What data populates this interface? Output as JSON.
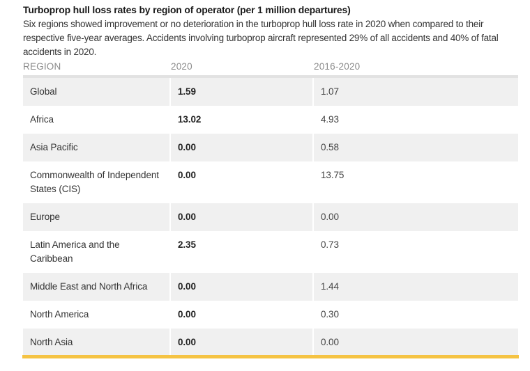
{
  "title": "Turboprop hull loss rates by region of operator (per 1 million departures)",
  "description": "Six regions showed improvement or no deterioration in the turboprop hull loss rate in 2020 when compared to their respective five-year averages. Accidents involving turboprop aircraft represented 29% of all accidents and 40% of fatal accidents in 2020.",
  "table": {
    "headers": [
      "REGION",
      "2020",
      "2016-2020"
    ],
    "rows": [
      {
        "region": "Global",
        "y2020": "1.59",
        "avg": "1.07"
      },
      {
        "region": "Africa",
        "y2020": "13.02",
        "avg": "4.93"
      },
      {
        "region": "Asia Pacific",
        "y2020": "0.00",
        "avg": "0.58"
      },
      {
        "region": "Commonwealth of Independent States (CIS)",
        "y2020": "0.00",
        "avg": "13.75"
      },
      {
        "region": "Europe",
        "y2020": "0.00",
        "avg": "0.00"
      },
      {
        "region": "Latin America and the Caribbean",
        "y2020": "2.35",
        "avg": "0.73"
      },
      {
        "region": "Middle East and North Africa",
        "y2020": "0.00",
        "avg": "1.44"
      },
      {
        "region": "North America",
        "y2020": "0.00",
        "avg": "0.30"
      },
      {
        "region": "North Asia",
        "y2020": "0.00",
        "avg": "0.00"
      }
    ]
  },
  "colors": {
    "accent_bar": "#f5c343",
    "row_shade": "#f0f0f0",
    "header_text": "#8a8a8a"
  }
}
